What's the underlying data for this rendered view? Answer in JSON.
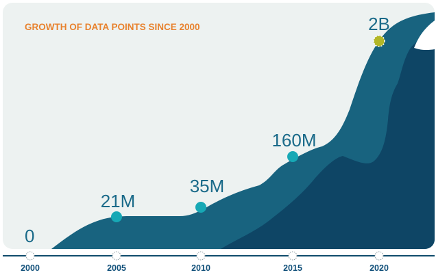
{
  "colors": {
    "panel": "#EDF2F1",
    "title": "#E8822E",
    "area_light": "#18637F",
    "area_dark": "#0E4565",
    "label": "#1A6A89",
    "marker": "#17A8B5",
    "marker_highlight": "#B3B727",
    "tick_label": "#11507A",
    "tick_circle_stroke": "#8A9AA0",
    "axis_line": "#0E4A6B"
  },
  "chart_data": {
    "type": "area",
    "title": "GROWTH OF DATA POINTS SINCE 2000",
    "xlabel": "",
    "ylabel": "",
    "x_ticks": [
      "2000",
      "2005",
      "2010",
      "2015",
      "2020"
    ],
    "points": [
      {
        "year": 2000,
        "label": "0",
        "marker": "none"
      },
      {
        "year": 2005,
        "label": "21M",
        "marker": "standard"
      },
      {
        "year": 2010,
        "label": "35M",
        "marker": "standard"
      },
      {
        "year": 2015,
        "label": "160M",
        "marker": "standard"
      },
      {
        "year": 2020,
        "label": "2B",
        "marker": "highlight"
      }
    ]
  }
}
